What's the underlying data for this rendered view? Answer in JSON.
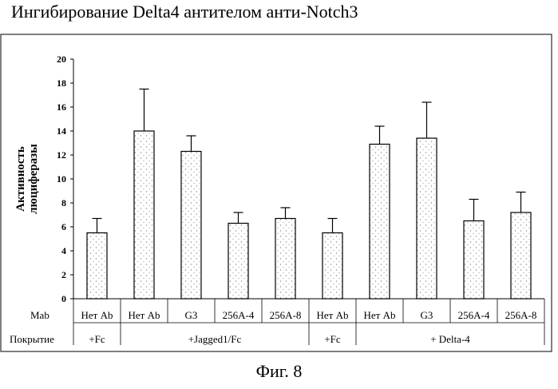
{
  "title": "Ингибирование Delta4 антителом анти-Notch3",
  "figure_caption": "Фиг. 8",
  "colors": {
    "bar_fill": "#ffffff",
    "bar_dots": "#8a8a8a",
    "axis": "#000000"
  },
  "chart_data": {
    "type": "bar",
    "ylabel": "Активность люциферазы",
    "ylim": [
      0,
      20
    ],
    "y_ticks": [
      0,
      2,
      4,
      6,
      8,
      10,
      12,
      14,
      16,
      18,
      20
    ],
    "grid": false,
    "categories": [
      "Нет Ab",
      "Нет Ab",
      "G3",
      "256A-4",
      "256A-8",
      "Нет Ab",
      "Нет Ab",
      "G3",
      "256A-4",
      "256A-8"
    ],
    "values": [
      5.5,
      14.0,
      12.3,
      6.3,
      6.7,
      5.5,
      12.9,
      13.4,
      6.5,
      7.2
    ],
    "error_upper": [
      6.7,
      17.5,
      13.6,
      7.2,
      7.6,
      6.7,
      14.4,
      16.4,
      8.3,
      8.9
    ],
    "row_labels": {
      "mab": "Mab",
      "coating": "Покрытие"
    },
    "groups": [
      {
        "label": "+Fc",
        "count": 1
      },
      {
        "label": "+Jagged1/Fc",
        "count": 4
      },
      {
        "label": "+Fc",
        "count": 1
      },
      {
        "label": "+ Delta-4",
        "count": 4
      }
    ]
  }
}
